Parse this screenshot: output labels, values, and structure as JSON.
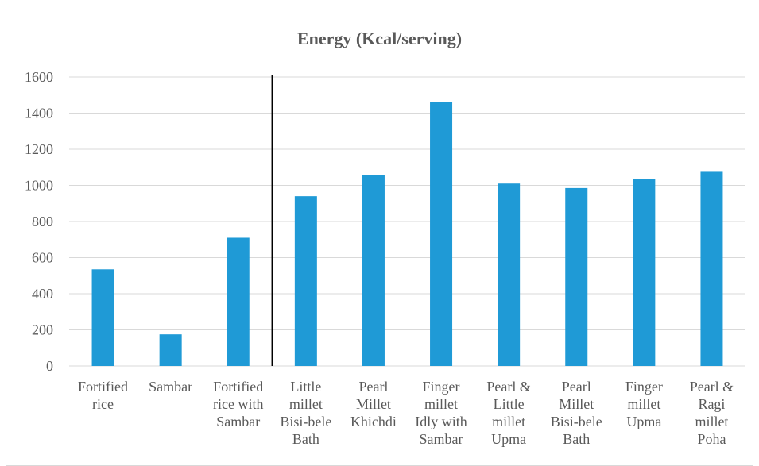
{
  "chart_data": {
    "type": "bar",
    "title": "Energy (Kcal/serving)",
    "xlabel": "",
    "ylabel": "",
    "ylim": [
      0,
      1600
    ],
    "yticks": [
      0,
      200,
      400,
      600,
      800,
      1000,
      1200,
      1400,
      1600
    ],
    "grid": true,
    "legend": "none",
    "bar_color": "#1f9ad6",
    "divider_after_category_index": 2,
    "categories": [
      [
        "Fortified",
        "rice"
      ],
      [
        "Sambar"
      ],
      [
        "Fortified",
        "rice with",
        "Sambar"
      ],
      [
        "Little",
        "millet",
        "Bisi-bele",
        "Bath"
      ],
      [
        "Pearl",
        "Millet",
        "Khichdi"
      ],
      [
        "Finger",
        "millet",
        "Idly with",
        "Sambar"
      ],
      [
        "Pearl &",
        "Little",
        "millet",
        "Upma"
      ],
      [
        "Pearl",
        "Millet",
        "Bisi-bele",
        "Bath"
      ],
      [
        "Finger",
        "millet",
        "Upma"
      ],
      [
        "Pearl &",
        "Ragi",
        "millet",
        "Poha"
      ]
    ],
    "values": [
      535,
      175,
      710,
      940,
      1055,
      1460,
      1010,
      985,
      1035,
      1075
    ]
  }
}
